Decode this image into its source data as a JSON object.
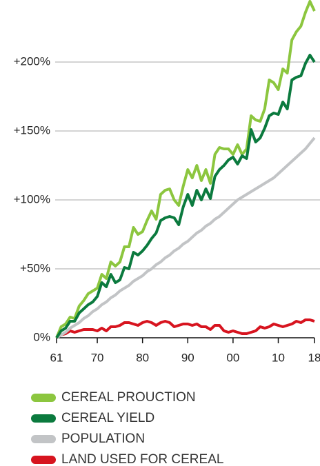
{
  "chart_data": {
    "type": "line",
    "x": [
      1961,
      1962,
      1963,
      1964,
      1965,
      1966,
      1967,
      1968,
      1969,
      1970,
      1971,
      1972,
      1973,
      1974,
      1975,
      1976,
      1977,
      1978,
      1979,
      1980,
      1981,
      1982,
      1983,
      1984,
      1985,
      1986,
      1987,
      1988,
      1989,
      1990,
      1991,
      1992,
      1993,
      1994,
      1995,
      1996,
      1997,
      1998,
      1999,
      2000,
      2001,
      2002,
      2003,
      2004,
      2005,
      2006,
      2007,
      2008,
      2009,
      2010,
      2011,
      2012,
      2013,
      2014,
      2015,
      2016,
      2017,
      2018
    ],
    "series": [
      {
        "name": "CEREAL PROUCTION",
        "color": "#8cc63f",
        "values": [
          0,
          8,
          10,
          15,
          14,
          23,
          27,
          32,
          34,
          36,
          46,
          43,
          55,
          52,
          55,
          66,
          66,
          80,
          75,
          77,
          85,
          92,
          86,
          104,
          107,
          108,
          100,
          96,
          110,
          122,
          116,
          125,
          114,
          122,
          112,
          133,
          138,
          137,
          137,
          133,
          140,
          133,
          137,
          161,
          158,
          157,
          166,
          187,
          185,
          180,
          195,
          192,
          216,
          222,
          226,
          236,
          244,
          237
        ]
      },
      {
        "name": "CEREAL YIELD",
        "color": "#0b7a3e",
        "values": [
          0,
          5,
          7,
          12,
          12,
          18,
          21,
          24,
          26,
          30,
          40,
          37,
          46,
          40,
          42,
          51,
          50,
          62,
          60,
          63,
          67,
          72,
          76,
          85,
          87,
          88,
          87,
          82,
          95,
          104,
          96,
          107,
          100,
          108,
          101,
          117,
          122,
          125,
          129,
          131,
          126,
          132,
          130,
          151,
          142,
          145,
          152,
          161,
          163,
          162,
          171,
          166,
          187,
          189,
          190,
          199,
          205,
          200
        ]
      },
      {
        "name": "POPULATION",
        "color": "#c2c4c6",
        "values": [
          0,
          2,
          4,
          7,
          9,
          11,
          14,
          16,
          19,
          21,
          24,
          26,
          29,
          31,
          34,
          36,
          38,
          41,
          43,
          45,
          48,
          50,
          53,
          55,
          58,
          60,
          63,
          65,
          68,
          70,
          73,
          76,
          78,
          81,
          83,
          86,
          88,
          91,
          94,
          97,
          100,
          102,
          104,
          106,
          108,
          110,
          112,
          114,
          116,
          119,
          122,
          125,
          128,
          131,
          134,
          137,
          141,
          145
        ]
      },
      {
        "name": "LAND USED FOR CEREAL",
        "color": "#d7141f",
        "values": [
          0,
          2,
          3,
          5,
          4,
          5,
          6,
          6,
          6,
          5,
          7,
          5,
          8,
          8,
          9,
          11,
          11,
          10,
          9,
          11,
          12,
          11,
          9,
          11,
          12,
          11,
          8,
          9,
          10,
          10,
          9,
          10,
          8,
          8,
          6,
          9,
          9,
          5,
          4,
          5,
          4,
          3,
          3,
          4,
          5,
          8,
          7,
          8,
          10,
          9,
          8,
          9,
          10,
          12,
          11,
          13,
          13,
          12
        ]
      }
    ],
    "xlim": [
      1961,
      2018
    ],
    "ylim": [
      0,
      245
    ],
    "xticks": [
      {
        "value": 1961,
        "label": "61"
      },
      {
        "value": 1970,
        "label": "70"
      },
      {
        "value": 1980,
        "label": "80"
      },
      {
        "value": 1990,
        "label": "90"
      },
      {
        "value": 2000,
        "label": "00"
      },
      {
        "value": 2010,
        "label": "10"
      },
      {
        "value": 2018,
        "label": "18"
      }
    ],
    "yticks": [
      {
        "value": 0,
        "label": "0%"
      },
      {
        "value": 50,
        "label": "+50%"
      },
      {
        "value": 100,
        "label": "+100%"
      },
      {
        "value": 150,
        "label": "+150%"
      },
      {
        "value": 200,
        "label": "+200%"
      }
    ],
    "grid": true,
    "legend": "bottom"
  }
}
